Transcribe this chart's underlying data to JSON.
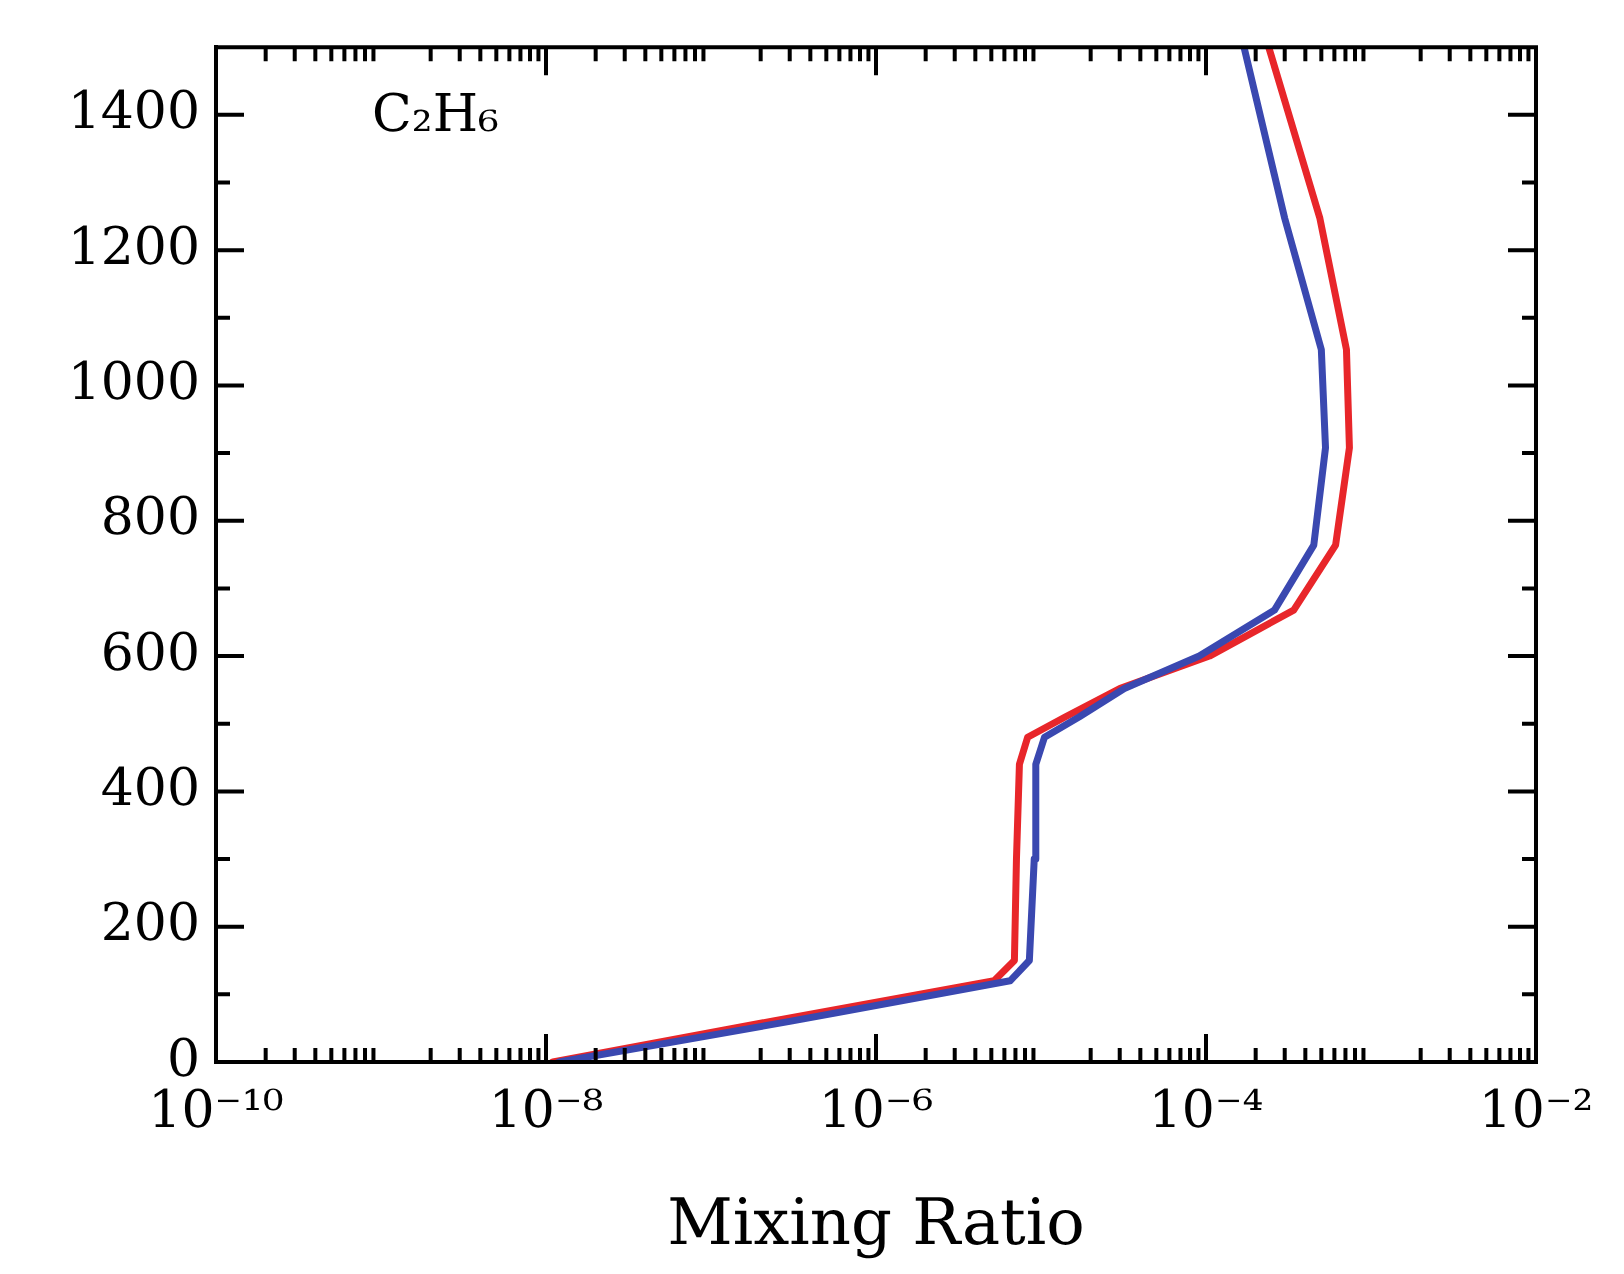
{
  "chart_data": {
    "type": "line",
    "xlabel": "Mixing Ratio",
    "annotations": [
      "C₂H₆"
    ],
    "log": "x",
    "grid": false,
    "legend": false,
    "marker": "none",
    "line_style": "solid",
    "xlim": [
      1e-10,
      0.01
    ],
    "xticks": [
      {
        "value": 1e-10,
        "label": "10⁻¹⁰"
      },
      {
        "value": 1e-08,
        "label": "10⁻⁸"
      },
      {
        "value": 1e-06,
        "label": "10⁻⁶"
      },
      {
        "value": 0.0001,
        "label": "10⁻⁴"
      },
      {
        "value": 0.01,
        "label": "10⁻²"
      }
    ],
    "ylim": [
      0,
      1500
    ],
    "yticks": [
      0,
      200,
      400,
      600,
      800,
      1000,
      1200,
      1400
    ],
    "series": [
      {
        "color": "#3a48b0",
        "x": [
          1.2e-08,
          3e-07,
          6.5e-06,
          8.5e-06,
          9.1e-06,
          9.3e-06,
          1.05e-05,
          1.7e-05,
          3.2e-05,
          9.1e-05,
          0.00026,
          0.00045,
          0.00053,
          0.0005,
          0.0003,
          0.00017
        ],
        "values": [
          0,
          60,
          120,
          150,
          300,
          440,
          480,
          510,
          552,
          600,
          668,
          764,
          908,
          1053,
          1247,
          1500
        ]
      },
      {
        "color": "#e8262a",
        "x": [
          1.1e-08,
          2.3e-07,
          5.2e-06,
          6.9e-06,
          7.1e-06,
          7.4e-06,
          8.3e-06,
          1.4e-05,
          3e-05,
          0.000105,
          0.00034,
          0.00061,
          0.00074,
          0.00071,
          0.00049,
          0.00024
        ],
        "values": [
          0,
          60,
          120,
          150,
          300,
          440,
          480,
          510,
          552,
          600,
          668,
          764,
          908,
          1053,
          1247,
          1500
        ]
      }
    ]
  }
}
